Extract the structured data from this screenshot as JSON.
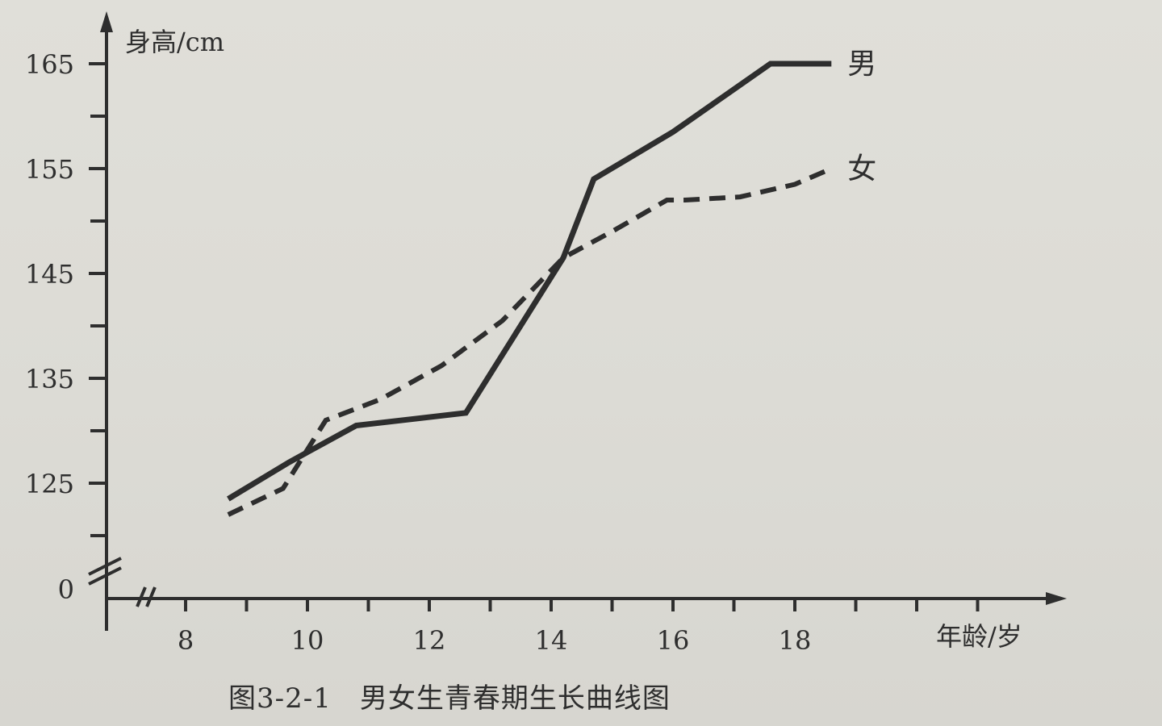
{
  "caption": "图3-2-1　男女生青春期生长曲线图",
  "chart_data": {
    "type": "line",
    "title": "",
    "xlabel": "年龄/岁",
    "ylabel": "身高/cm",
    "x_ticks": [
      8,
      10,
      12,
      14,
      16,
      18
    ],
    "x_range": [
      7,
      22
    ],
    "y_ticks": [
      0,
      125,
      135,
      145,
      155,
      165
    ],
    "y_range": [
      120,
      168
    ],
    "y_axis_break": true,
    "x_axis_break": true,
    "grid": false,
    "legend": "inline labels at line ends",
    "series": [
      {
        "name": "男",
        "style": "solid",
        "color": "#2e2e2e",
        "x": [
          8.7,
          9.7,
          10.8,
          12.6,
          14.2,
          14.7,
          16,
          17.6,
          18.6
        ],
        "y": [
          123.5,
          127,
          130.5,
          131.7,
          146.5,
          154,
          158.5,
          165,
          165
        ]
      },
      {
        "name": "女",
        "style": "dashed",
        "color": "#2e2e2e",
        "x": [
          8.7,
          9.6,
          10.3,
          11.2,
          12.2,
          13.2,
          14.2,
          15,
          15.9,
          16.2,
          17.1,
          18,
          18.6
        ],
        "y": [
          122,
          124.5,
          131,
          133,
          136.2,
          140.5,
          146.5,
          149,
          152,
          152,
          152.3,
          153.5,
          155
        ]
      }
    ]
  }
}
